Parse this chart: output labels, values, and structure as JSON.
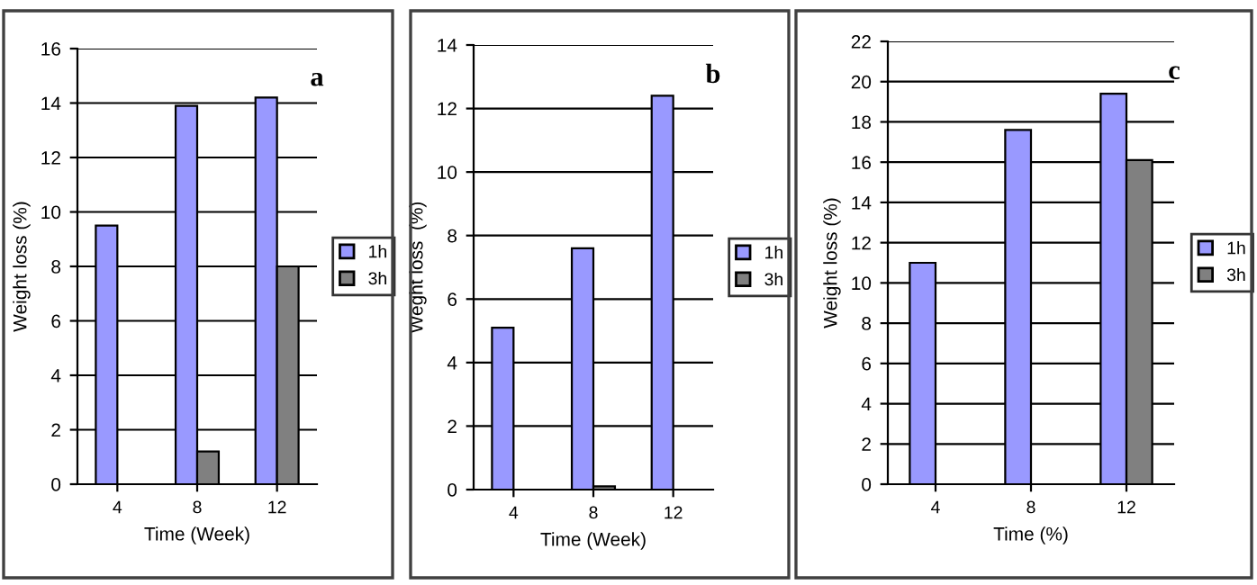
{
  "chart_data": [
    {
      "type": "bar",
      "categories": [
        "4",
        "8",
        "12"
      ],
      "xlabel": "Time (Week)",
      "ylabel": "Weight loss (%)",
      "annotations": [
        "a"
      ],
      "ylim": [
        0,
        16
      ],
      "yticks": [
        0,
        2,
        4,
        6,
        8,
        10,
        12,
        14,
        16
      ],
      "grid": "y",
      "legend": "right",
      "series": [
        {
          "name": "1h",
          "color": "#9999ff",
          "values": [
            9.5,
            13.9,
            14.2
          ]
        },
        {
          "name": "3h",
          "color": "#808080",
          "values": [
            null,
            1.2,
            8.0
          ]
        }
      ]
    },
    {
      "type": "bar",
      "categories": [
        "4",
        "8",
        "12"
      ],
      "xlabel": "Time (Week)",
      "ylabel": "Weght loss  (%)",
      "annotations": [
        "b"
      ],
      "ylim": [
        0,
        14
      ],
      "yticks": [
        0,
        2,
        4,
        6,
        8,
        10,
        12,
        14
      ],
      "grid": "y",
      "legend": "right",
      "series": [
        {
          "name": "1h",
          "color": "#9999ff",
          "values": [
            5.1,
            7.6,
            12.4
          ]
        },
        {
          "name": "3h",
          "color": "#808080",
          "values": [
            null,
            0.1,
            null
          ]
        }
      ]
    },
    {
      "type": "bar",
      "categories": [
        "4",
        "8",
        "12"
      ],
      "xlabel": "Time (%)",
      "ylabel": "Weight loss (%)",
      "annotations": [
        "c"
      ],
      "ylim": [
        0,
        22
      ],
      "yticks": [
        0,
        2,
        4,
        6,
        8,
        10,
        12,
        14,
        16,
        18,
        20,
        22
      ],
      "grid": "y",
      "legend": "right",
      "series": [
        {
          "name": "1h",
          "color": "#9999ff",
          "values": [
            11.0,
            17.6,
            19.4
          ]
        },
        {
          "name": "3h",
          "color": "#808080",
          "values": [
            null,
            null,
            16.1
          ]
        }
      ]
    }
  ]
}
